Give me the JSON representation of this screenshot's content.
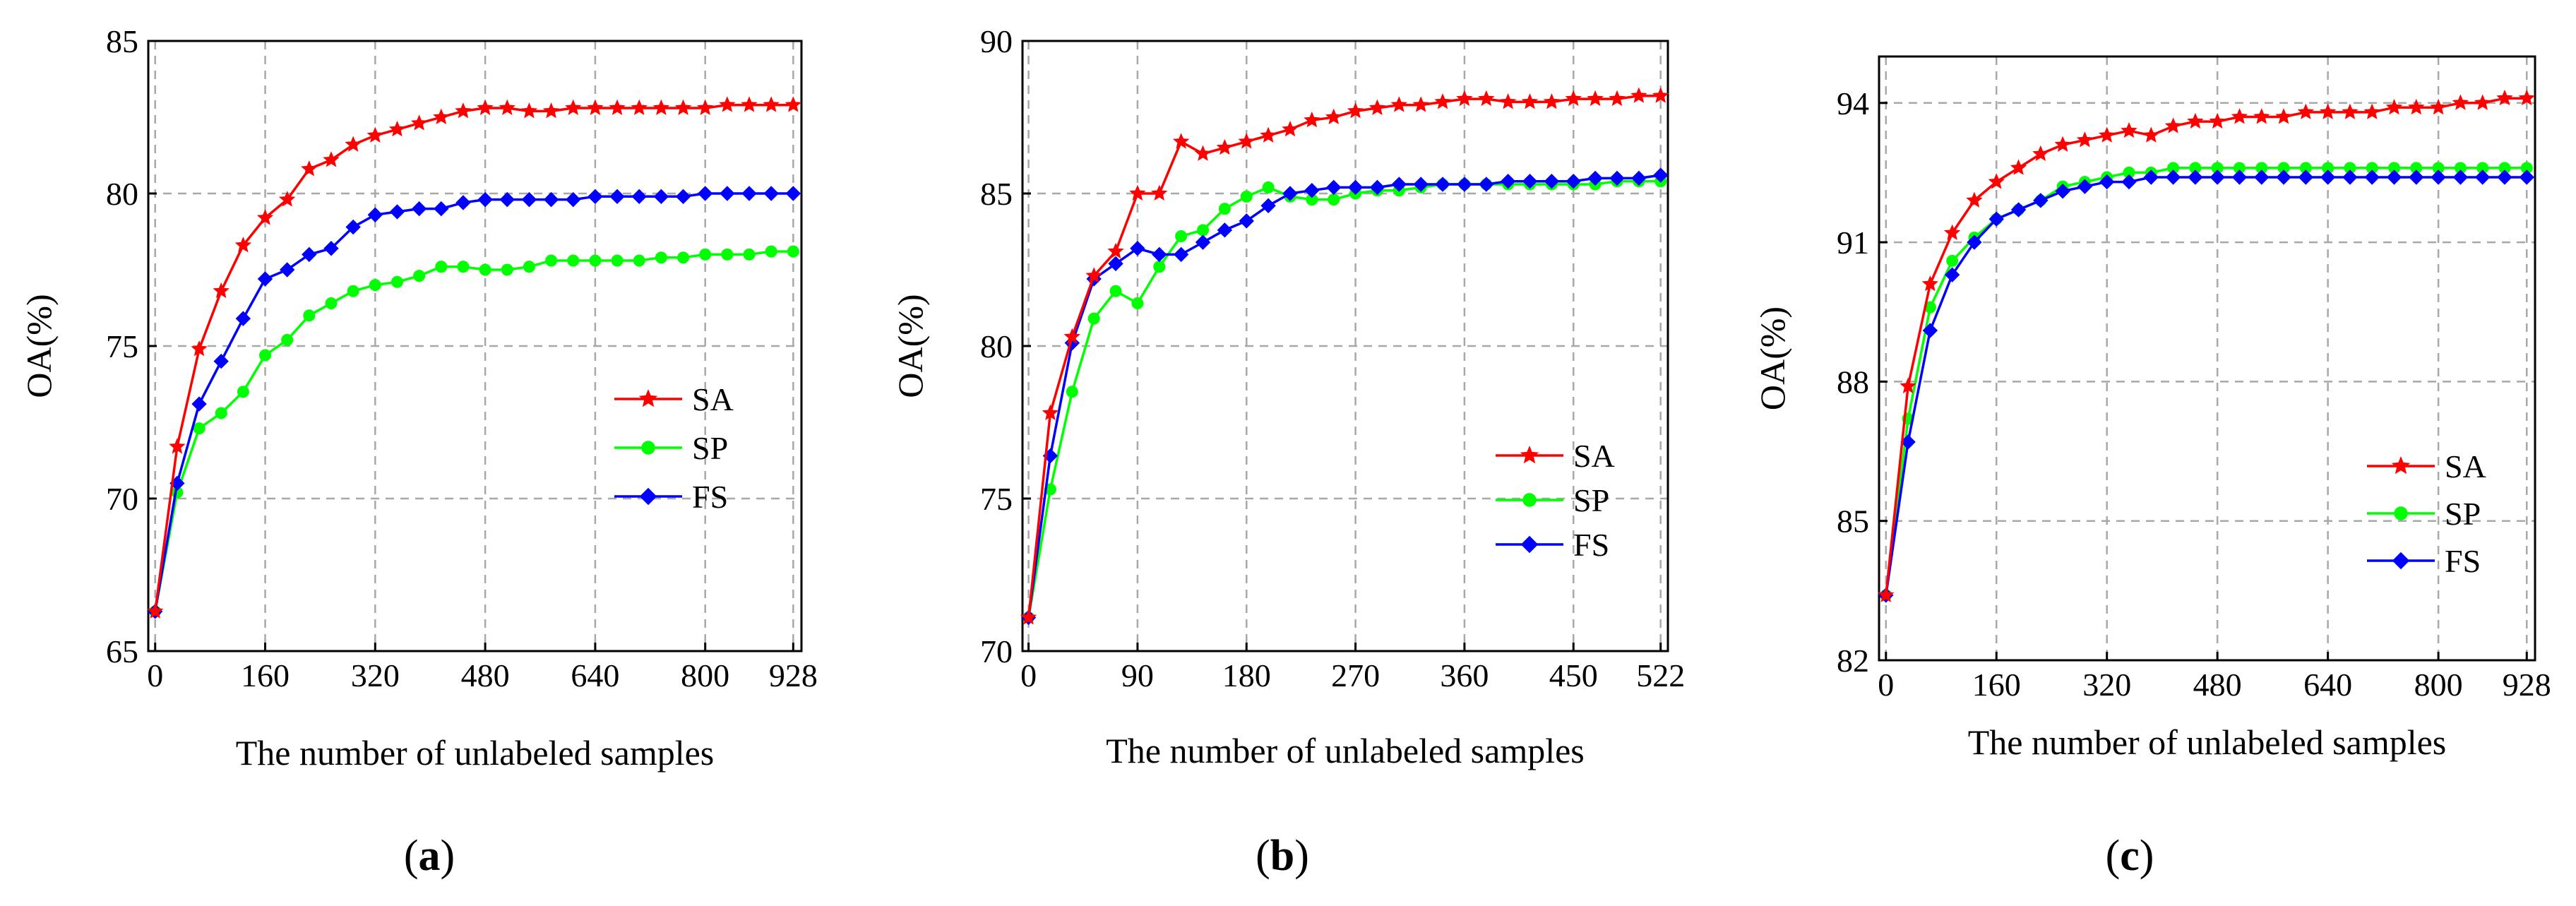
{
  "chart_data": [
    {
      "type": "line",
      "panel_label": "a",
      "xlabel": "The number of unlabeled samples",
      "ylabel": "OA(%)",
      "xlim": [
        -10,
        940
      ],
      "ylim": [
        65,
        85
      ],
      "xticks": [
        0,
        160,
        320,
        480,
        640,
        800,
        928
      ],
      "yticks": [
        65,
        70,
        75,
        80,
        85
      ],
      "x": [
        0,
        32,
        64,
        96,
        128,
        160,
        192,
        224,
        256,
        288,
        320,
        352,
        384,
        416,
        448,
        480,
        512,
        544,
        576,
        608,
        640,
        672,
        704,
        736,
        768,
        800,
        832,
        864,
        896,
        928
      ],
      "series": [
        {
          "name": "SA",
          "color": "#ff0000",
          "marker": "star",
          "values": [
            66.3,
            71.7,
            74.9,
            76.8,
            78.3,
            79.2,
            79.8,
            80.8,
            81.1,
            81.6,
            81.9,
            82.1,
            82.3,
            82.5,
            82.7,
            82.8,
            82.8,
            82.7,
            82.7,
            82.8,
            82.8,
            82.8,
            82.8,
            82.8,
            82.8,
            82.8,
            82.9,
            82.9,
            82.9,
            82.9
          ]
        },
        {
          "name": "SP",
          "color": "#00ff00",
          "marker": "circle",
          "values": [
            66.3,
            70.2,
            72.3,
            72.8,
            73.5,
            74.7,
            75.2,
            76.0,
            76.4,
            76.8,
            77.0,
            77.1,
            77.3,
            77.6,
            77.6,
            77.5,
            77.5,
            77.6,
            77.8,
            77.8,
            77.8,
            77.8,
            77.8,
            77.9,
            77.9,
            78.0,
            78.0,
            78.0,
            78.1,
            78.1
          ]
        },
        {
          "name": "FS",
          "color": "#0000ff",
          "marker": "diamond",
          "values": [
            66.3,
            70.5,
            73.1,
            74.5,
            75.9,
            77.2,
            77.5,
            78.0,
            78.2,
            78.9,
            79.3,
            79.4,
            79.5,
            79.5,
            79.7,
            79.8,
            79.8,
            79.8,
            79.8,
            79.8,
            79.9,
            79.9,
            79.9,
            79.9,
            79.9,
            80.0,
            80.0,
            80.0,
            80.0,
            80.0
          ]
        }
      ],
      "legend": [
        "SA",
        "SP",
        "FS"
      ]
    },
    {
      "type": "line",
      "panel_label": "b",
      "xlabel": "The number of unlabeled samples",
      "ylabel": "OA(%)",
      "xlim": [
        -5,
        528
      ],
      "ylim": [
        70,
        90
      ],
      "xticks": [
        0,
        90,
        180,
        270,
        360,
        450,
        522
      ],
      "yticks": [
        70,
        75,
        80,
        85,
        90
      ],
      "x": [
        0,
        18,
        36,
        54,
        72,
        90,
        108,
        126,
        144,
        162,
        180,
        198,
        216,
        234,
        252,
        270,
        288,
        306,
        324,
        342,
        360,
        378,
        396,
        414,
        432,
        450,
        468,
        486,
        504,
        522
      ],
      "series": [
        {
          "name": "SA",
          "color": "#ff0000",
          "marker": "star",
          "values": [
            71.1,
            77.8,
            80.3,
            82.3,
            83.1,
            85.0,
            85.0,
            86.7,
            86.3,
            86.5,
            86.7,
            86.9,
            87.1,
            87.4,
            87.5,
            87.7,
            87.8,
            87.9,
            87.9,
            88.0,
            88.1,
            88.1,
            88.0,
            88.0,
            88.0,
            88.1,
            88.1,
            88.1,
            88.2,
            88.2
          ]
        },
        {
          "name": "SP",
          "color": "#00ff00",
          "marker": "circle",
          "values": [
            71.1,
            75.3,
            78.5,
            80.9,
            81.8,
            81.4,
            82.6,
            83.6,
            83.8,
            84.5,
            84.9,
            85.2,
            84.9,
            84.8,
            84.8,
            85.0,
            85.1,
            85.1,
            85.2,
            85.3,
            85.3,
            85.3,
            85.3,
            85.3,
            85.3,
            85.3,
            85.3,
            85.4,
            85.4,
            85.4
          ]
        },
        {
          "name": "FS",
          "color": "#0000ff",
          "marker": "diamond",
          "values": [
            71.1,
            76.4,
            80.1,
            82.2,
            82.7,
            83.2,
            83.0,
            83.0,
            83.4,
            83.8,
            84.1,
            84.6,
            85.0,
            85.1,
            85.2,
            85.2,
            85.2,
            85.3,
            85.3,
            85.3,
            85.3,
            85.3,
            85.4,
            85.4,
            85.4,
            85.4,
            85.5,
            85.5,
            85.5,
            85.6
          ]
        }
      ],
      "legend": [
        "SA",
        "SP",
        "FS"
      ]
    },
    {
      "type": "line",
      "panel_label": "c",
      "xlabel": "The number of unlabeled samples",
      "ylabel": "OA(%)",
      "xlim": [
        -10,
        940
      ],
      "ylim": [
        82,
        95
      ],
      "xticks": [
        0,
        160,
        320,
        480,
        640,
        800,
        928
      ],
      "yticks": [
        82,
        85,
        88,
        91,
        94
      ],
      "x": [
        0,
        32,
        64,
        96,
        128,
        160,
        192,
        224,
        256,
        288,
        320,
        352,
        384,
        416,
        448,
        480,
        512,
        544,
        576,
        608,
        640,
        672,
        704,
        736,
        768,
        800,
        832,
        864,
        896,
        928
      ],
      "series": [
        {
          "name": "SA",
          "color": "#ff0000",
          "marker": "star",
          "values": [
            83.4,
            87.9,
            90.1,
            91.2,
            91.9,
            92.3,
            92.6,
            92.9,
            93.1,
            93.2,
            93.3,
            93.4,
            93.3,
            93.5,
            93.6,
            93.6,
            93.7,
            93.7,
            93.7,
            93.8,
            93.8,
            93.8,
            93.8,
            93.9,
            93.9,
            93.9,
            94.0,
            94.0,
            94.1,
            94.1
          ]
        },
        {
          "name": "SP",
          "color": "#00ff00",
          "marker": "circle",
          "values": [
            83.4,
            87.2,
            89.6,
            90.6,
            91.1,
            91.5,
            91.7,
            91.9,
            92.2,
            92.3,
            92.4,
            92.5,
            92.5,
            92.6,
            92.6,
            92.6,
            92.6,
            92.6,
            92.6,
            92.6,
            92.6,
            92.6,
            92.6,
            92.6,
            92.6,
            92.6,
            92.6,
            92.6,
            92.6,
            92.6
          ]
        },
        {
          "name": "FS",
          "color": "#0000ff",
          "marker": "diamond",
          "values": [
            83.4,
            86.7,
            89.1,
            90.3,
            91.0,
            91.5,
            91.7,
            91.9,
            92.1,
            92.2,
            92.3,
            92.3,
            92.4,
            92.4,
            92.4,
            92.4,
            92.4,
            92.4,
            92.4,
            92.4,
            92.4,
            92.4,
            92.4,
            92.4,
            92.4,
            92.4,
            92.4,
            92.4,
            92.4,
            92.4
          ]
        }
      ],
      "legend": [
        "SA",
        "SP",
        "FS"
      ]
    }
  ],
  "captions": [
    {
      "open": "(",
      "label": "a",
      "close": ")"
    },
    {
      "open": "(",
      "label": "b",
      "close": ")"
    },
    {
      "open": "(",
      "label": "c",
      "close": ")"
    }
  ]
}
